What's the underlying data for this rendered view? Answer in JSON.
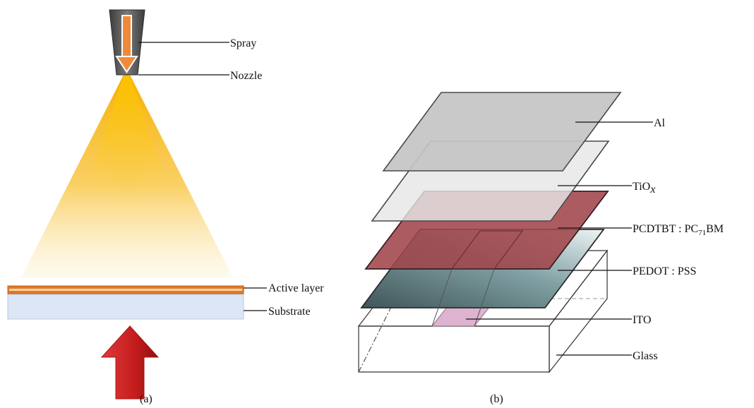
{
  "panel_a": {
    "caption": "(a)",
    "labels": {
      "spray": "Spray",
      "nozzle": "Nozzle",
      "active_layer": "Active layer",
      "substrate": "Substrate"
    }
  },
  "panel_b": {
    "caption": "(b)",
    "labels": {
      "al": "Al",
      "tiox_main": "TiO",
      "tiox_sub": "x",
      "pcdtbt_main": "PCDTBT : PC",
      "pcdtbt_sub": "71",
      "pcdtbt_tail": "BM",
      "pedot": "PEDOT : PSS",
      "ito": "ITO",
      "glass": "Glass"
    }
  },
  "colors": {
    "spray_cone": "#f5b40a",
    "nozzle": "#555555",
    "nozzle_arrow": "#f08a3a",
    "active_layer": "#e07a2a",
    "substrate": "#dce6f5",
    "up_arrow": "#c81e1e",
    "al_layer": "#c4c4c4",
    "tiox_layer": "#e6e6e6",
    "pcdtbt_layer": "#a0464b",
    "pedot_layer": "#5a7478",
    "ito": "#ddb3cf"
  }
}
